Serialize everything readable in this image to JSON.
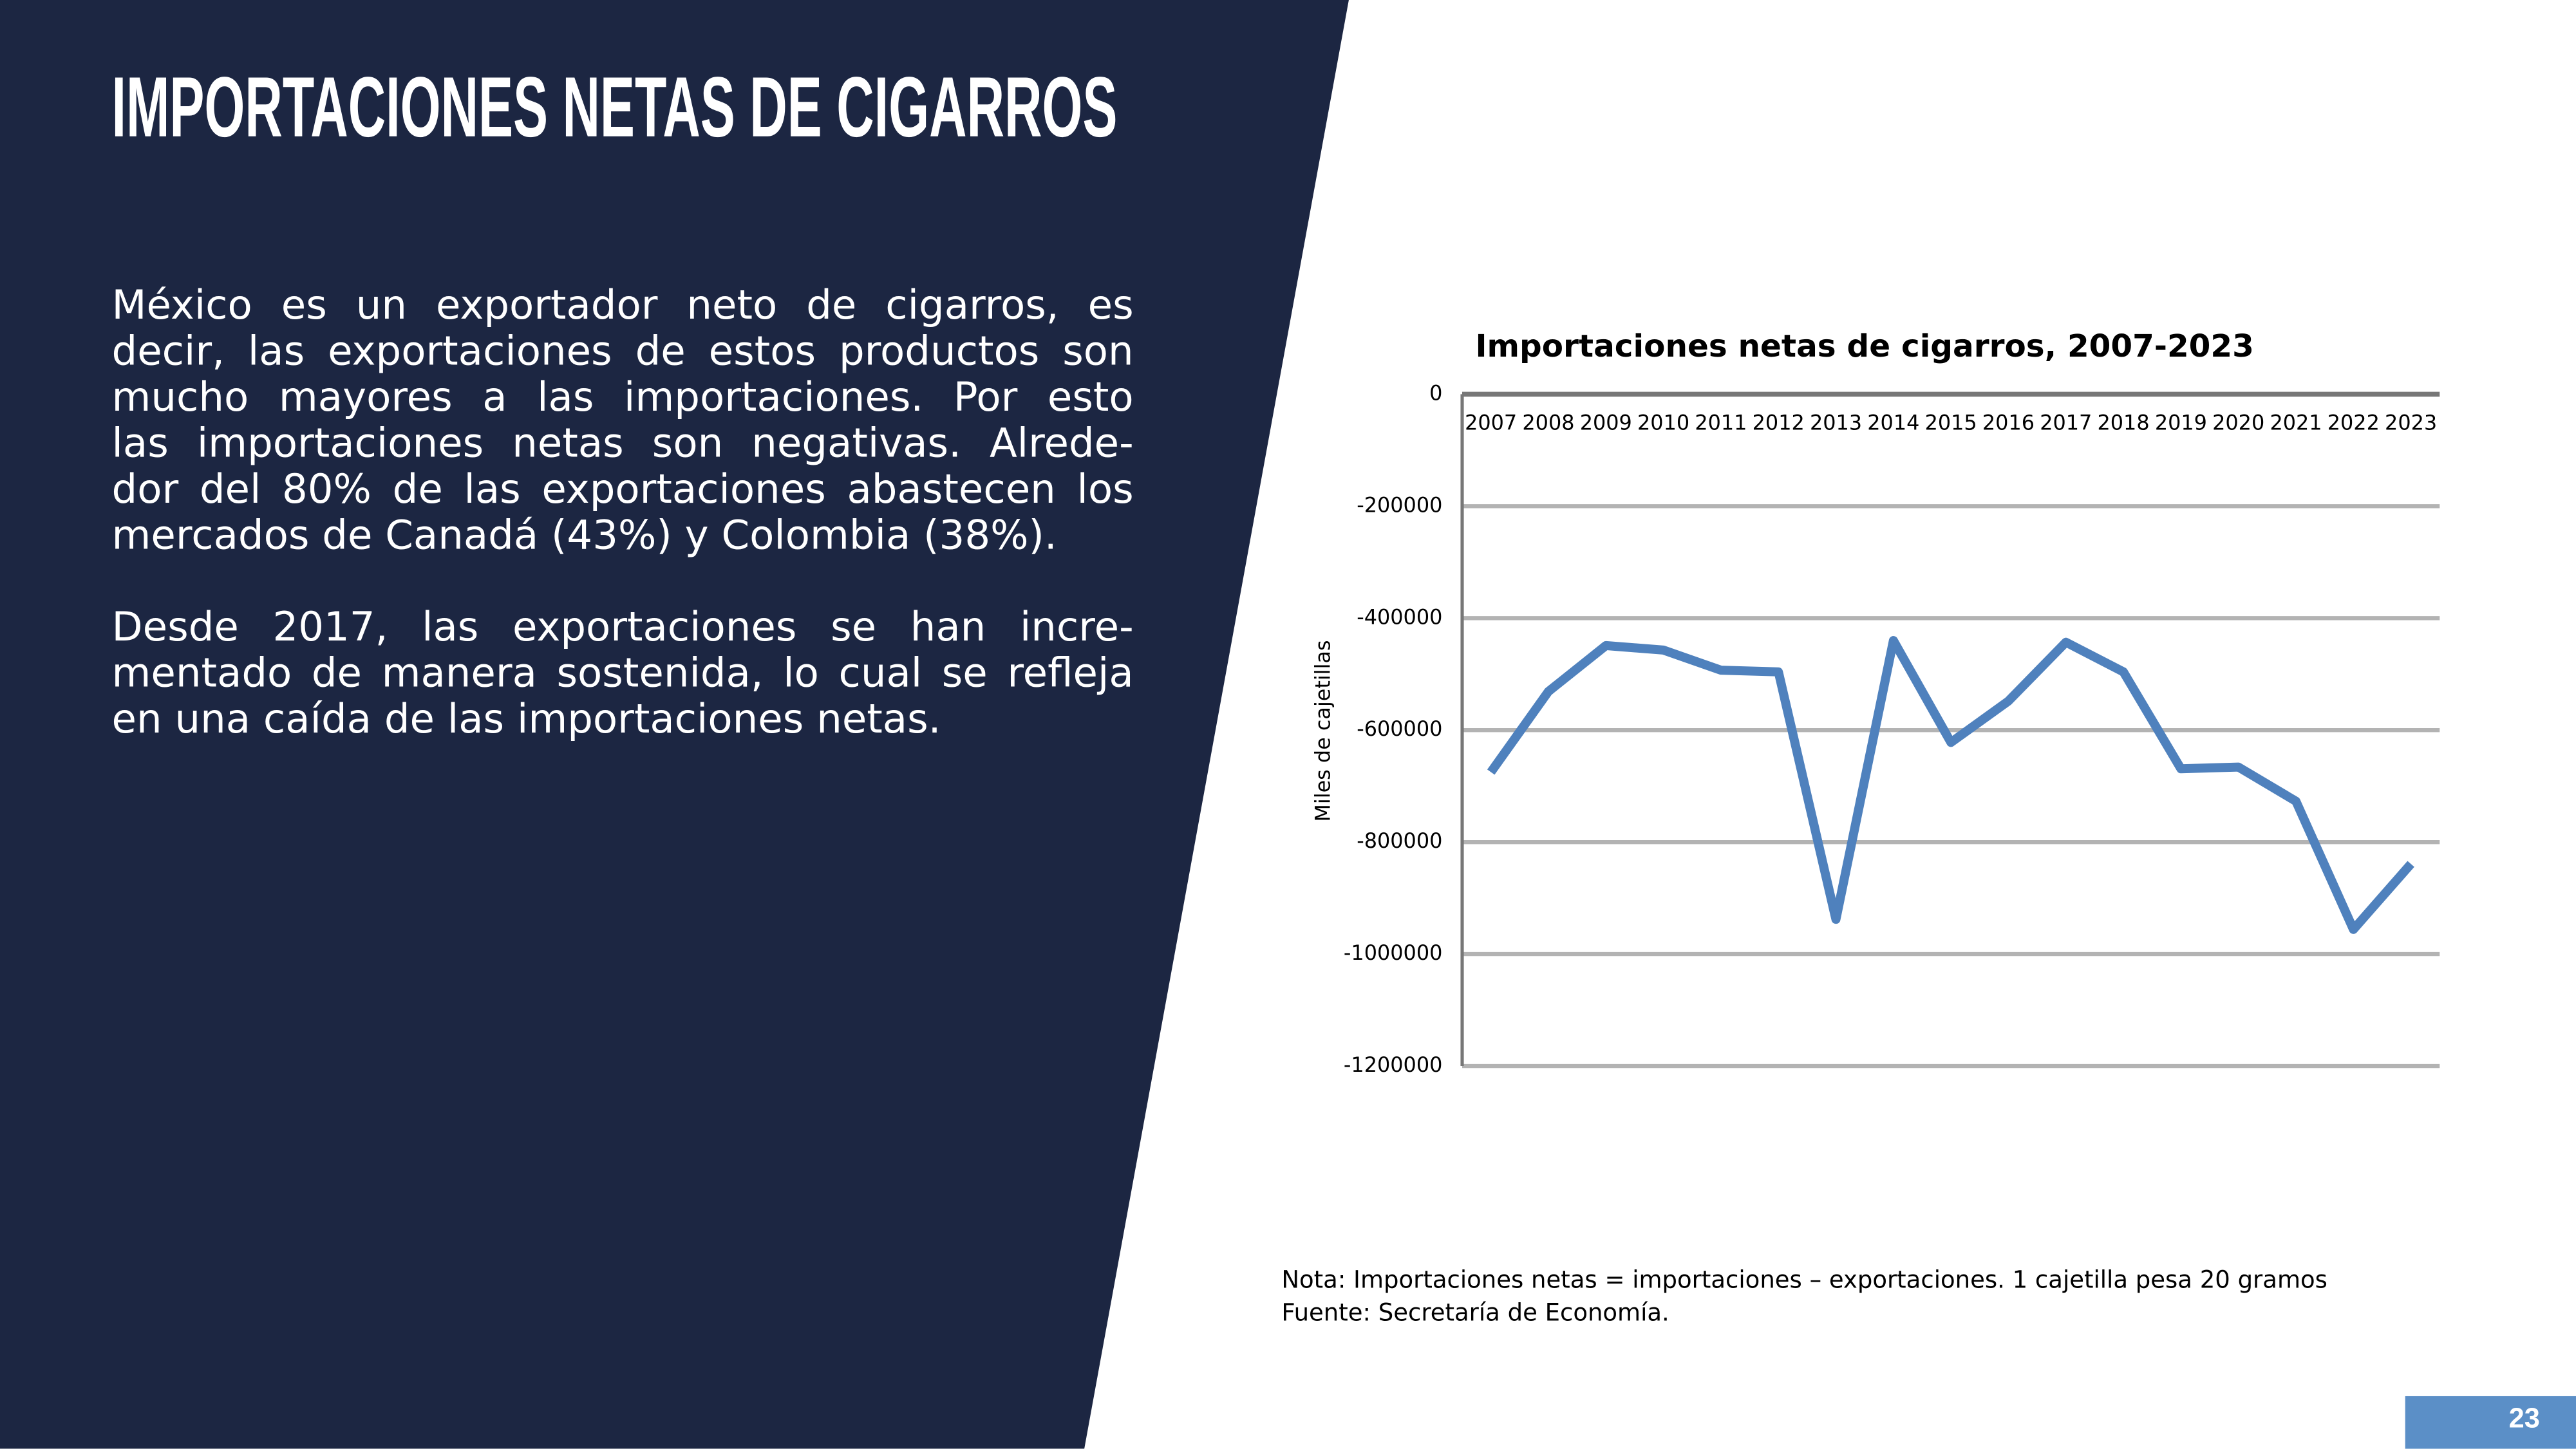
{
  "slide": {
    "title": "IMPORTACIONES NETAS DE CIGARROS",
    "paragraphs": [
      [
        "México es un exportador neto de cigarros, es",
        "decir, las exportaciones de estos productos son",
        "mucho mayores a las importaciones. Por esto",
        "las importaciones netas son negativas. Alrede-",
        "dor del 80% de las exportaciones abastecen los",
        "mercados de Canadá (43%) y Colombia (38%)."
      ],
      [
        "Desde 2017, las exportaciones se  han incre-",
        "mentado de manera sostenida, lo cual se refleja",
        "en una caída de las importaciones netas."
      ]
    ],
    "note": "Nota: Importaciones netas = importaciones – exportaciones. 1 cajetilla pesa 20 gramos",
    "source": "Fuente: Secretaría de Economía.",
    "page_number": "23"
  },
  "chart_data": {
    "type": "line",
    "title": "Importaciones netas de cigarros, 2007-2023",
    "y_label": "Miles de cajetillas",
    "categories": [
      "2007",
      "2008",
      "2009",
      "2010",
      "2011",
      "2012",
      "2013",
      "2014",
      "2015",
      "2016",
      "2017",
      "2018",
      "2019",
      "2020",
      "2021",
      "2022",
      "2023"
    ],
    "values": [
      -675000,
      -531000,
      -449000,
      -457000,
      -493000,
      -496000,
      -938000,
      -440000,
      -622000,
      -548000,
      -443000,
      -496000,
      -669000,
      -666000,
      -727000,
      -956000,
      -839000
    ],
    "color": "#4f81bd",
    "ylim": [
      -1200000,
      0
    ],
    "yticks": [
      0,
      -200000,
      -400000,
      -600000,
      -800000,
      -1000000,
      -1200000
    ],
    "grid": true
  }
}
